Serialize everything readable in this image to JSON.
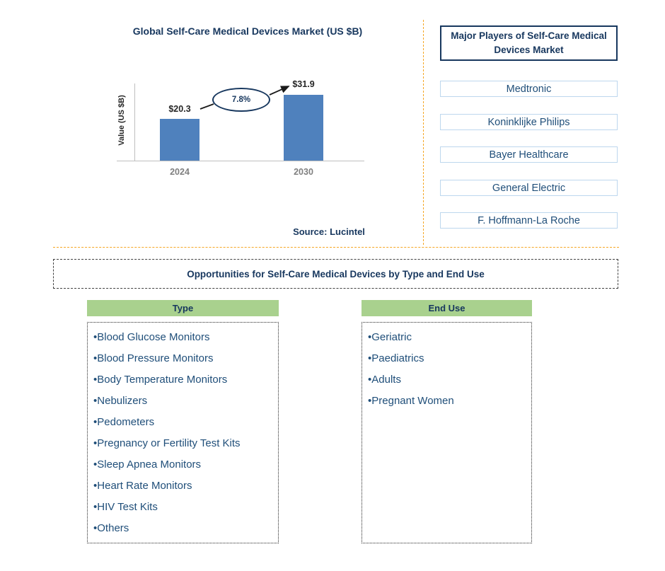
{
  "chart": {
    "title": "Global Self-Care Medical Devices Market (US $B)",
    "y_axis_label": "Value (US $B)",
    "source": "Source: Lucintel",
    "growth_label": "7.8%"
  },
  "chart_data": {
    "type": "bar",
    "title": "Global Self-Care Medical Devices Market (US $B)",
    "categories": [
      "2024",
      "2030"
    ],
    "values": [
      20.3,
      31.9
    ],
    "value_labels": [
      "$20.3",
      "$31.9"
    ],
    "xlabel": "",
    "ylabel": "Value (US $B)",
    "ylim": [
      0,
      35
    ],
    "annotations": [
      "7.8% growth from 2024 to 2030"
    ],
    "bar_color": "#4F81BD",
    "grid": false,
    "legend_position": "none"
  },
  "players": {
    "title": "Major Players of Self-Care Medical Devices Market",
    "items": [
      "Medtronic",
      "Koninklijke Philips",
      "Bayer Healthcare",
      "General Electric",
      "F. Hoffmann-La Roche"
    ]
  },
  "opportunities": {
    "title": "Opportunities for Self-Care Medical Devices by Type and End Use",
    "type_header": "Type",
    "type_items": [
      "Blood Glucose Monitors",
      "Blood Pressure Monitors",
      "Body Temperature Monitors",
      "Nebulizers",
      "Pedometers",
      "Pregnancy or Fertility Test Kits",
      "Sleep Apnea Monitors",
      "Heart Rate Monitors",
      "HIV Test Kits",
      "Others"
    ],
    "end_use_header": "End Use",
    "end_use_items": [
      "Geriatric",
      "Paediatrics",
      "Adults",
      "Pregnant Women"
    ]
  },
  "colors": {
    "navy": "#17375E",
    "list_blue": "#1F4E79",
    "bar_blue": "#4F81BD",
    "green": "#A9D18E",
    "orange_dashed": "#F5A623",
    "axis_gray": "#BFBFBF",
    "tick_gray": "#7F7F7F",
    "player_border": "#BDD7EE"
  }
}
